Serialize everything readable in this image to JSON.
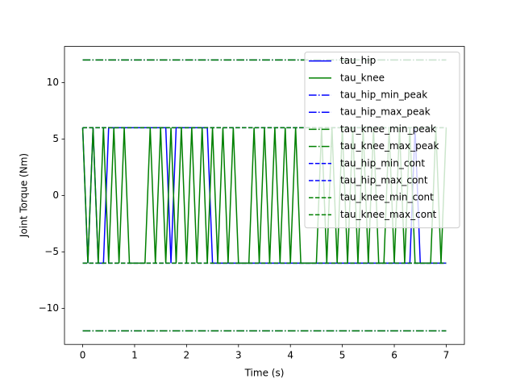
{
  "chart_data": {
    "type": "line",
    "x_label": "Time (s)",
    "y_label": "Joint Torque (Nm)",
    "xlim": [
      -0.35,
      7.35
    ],
    "ylim": [
      -13.2,
      13.2
    ],
    "xticks": [
      0,
      1,
      2,
      3,
      4,
      5,
      6,
      7
    ],
    "yticks": [
      {
        "value": -10,
        "label": "−10"
      },
      {
        "value": -5,
        "label": "−5"
      },
      0,
      5,
      10
    ],
    "legend": "upper right",
    "series": [
      {
        "name": "tau_hip",
        "color": "#0000ff",
        "style": "solid",
        "x": [
          0,
          0.1,
          0.2,
          0.3,
          0.4,
          0.5,
          0.6,
          0.7,
          0.8,
          0.9,
          1,
          1.1,
          1.2,
          1.3,
          1.4,
          1.5,
          1.6,
          1.7,
          1.8,
          1.9,
          2,
          2.1,
          2.2,
          2.3,
          2.4,
          2.5,
          2.6,
          2.7,
          2.8,
          2.9,
          3,
          3.1,
          3.2,
          3.3,
          3.4,
          3.5,
          3.6,
          3.7,
          3.8,
          3.9,
          4,
          4.1,
          4.2,
          4.3,
          4.4,
          4.5,
          4.6,
          4.7,
          4.8,
          4.9,
          5,
          5.1,
          5.2,
          5.3,
          5.4,
          5.5,
          5.6,
          5.7,
          5.8,
          5.9,
          6,
          6.1,
          6.2,
          6.3,
          6.4,
          6.5,
          6.6,
          6.7,
          6.8,
          6.9,
          7
        ],
        "values": [
          6,
          -6,
          6,
          -6,
          -6,
          6,
          6,
          6,
          6,
          6,
          6,
          6,
          6,
          6,
          6,
          6,
          6,
          -6,
          6,
          6,
          6,
          6,
          6,
          6,
          6,
          -6,
          -6,
          -6,
          -6,
          -6,
          -6,
          -6,
          -6,
          -6,
          -6,
          -6,
          -6,
          -6,
          -6,
          -6,
          -6,
          -6,
          -6,
          -6,
          -6,
          -6,
          -6,
          -6,
          -6,
          -6,
          -6,
          -6,
          -6,
          -6,
          -6,
          -6,
          -6,
          -6,
          -6,
          -6,
          -6,
          -6,
          -6,
          -6,
          6,
          -6,
          -6,
          -6,
          -6,
          -6,
          -6
        ]
      },
      {
        "name": "tau_knee",
        "color": "#008000",
        "style": "solid",
        "x": [
          0,
          0.1,
          0.2,
          0.3,
          0.4,
          0.5,
          0.6,
          0.7,
          0.8,
          0.9,
          1,
          1.1,
          1.2,
          1.3,
          1.4,
          1.5,
          1.6,
          1.7,
          1.8,
          1.9,
          2,
          2.1,
          2.2,
          2.3,
          2.4,
          2.5,
          2.6,
          2.7,
          2.8,
          2.9,
          3,
          3.1,
          3.2,
          3.3,
          3.4,
          3.5,
          3.6,
          3.7,
          3.8,
          3.9,
          4,
          4.1,
          4.2,
          4.3,
          4.4,
          4.5,
          4.6,
          4.7,
          4.8,
          4.9,
          5,
          5.1,
          5.2,
          5.3,
          5.4,
          5.5,
          5.6,
          5.7,
          5.8,
          5.9,
          6,
          6.1,
          6.2,
          6.3,
          6.4,
          6.5,
          6.6,
          6.7,
          6.8,
          6.9,
          7
        ],
        "values": [
          6,
          -6,
          6,
          -6,
          6,
          -6,
          6,
          -6,
          6,
          -6,
          -6,
          -6,
          -6,
          6,
          -6,
          6,
          -6,
          6,
          -6,
          6,
          -6,
          6,
          -6,
          6,
          -6,
          6,
          -6,
          6,
          -6,
          6,
          -6,
          -6,
          -6,
          6,
          -6,
          6,
          -6,
          6,
          -6,
          6,
          -6,
          6,
          -6,
          -6,
          -6,
          -6,
          6,
          -6,
          6,
          -6,
          6,
          -6,
          6,
          -6,
          6,
          -6,
          6,
          -6,
          -6,
          6,
          -6,
          6,
          -6,
          6,
          -6,
          -6,
          -6,
          -6,
          6,
          -6,
          6
        ]
      },
      {
        "name": "tau_hip_min_peak",
        "color": "#0000ff",
        "style": "dashdot",
        "x": [
          0,
          7
        ],
        "values": [
          -12,
          -12
        ]
      },
      {
        "name": "tau_hip_max_peak",
        "color": "#0000ff",
        "style": "dashdot",
        "x": [
          0,
          7
        ],
        "values": [
          12,
          12
        ]
      },
      {
        "name": "tau_knee_min_peak",
        "color": "#008000",
        "style": "dashdot",
        "x": [
          0,
          7
        ],
        "values": [
          -12,
          -12
        ]
      },
      {
        "name": "tau_knee_max_peak",
        "color": "#008000",
        "style": "dashdot",
        "x": [
          0,
          7
        ],
        "values": [
          12,
          12
        ]
      },
      {
        "name": "tau_hip_min_cont",
        "color": "#0000ff",
        "style": "dashed",
        "x": [
          0,
          7
        ],
        "values": [
          -6,
          -6
        ]
      },
      {
        "name": "tau_hip_max_cont",
        "color": "#0000ff",
        "style": "dashed",
        "x": [
          0,
          7
        ],
        "values": [
          6,
          6
        ]
      },
      {
        "name": "tau_knee_min_cont",
        "color": "#008000",
        "style": "dashed",
        "x": [
          0,
          7
        ],
        "values": [
          -6,
          -6
        ]
      },
      {
        "name": "tau_knee_max_cont",
        "color": "#008000",
        "style": "dashed",
        "x": [
          0,
          7
        ],
        "values": [
          6,
          6
        ]
      }
    ]
  }
}
